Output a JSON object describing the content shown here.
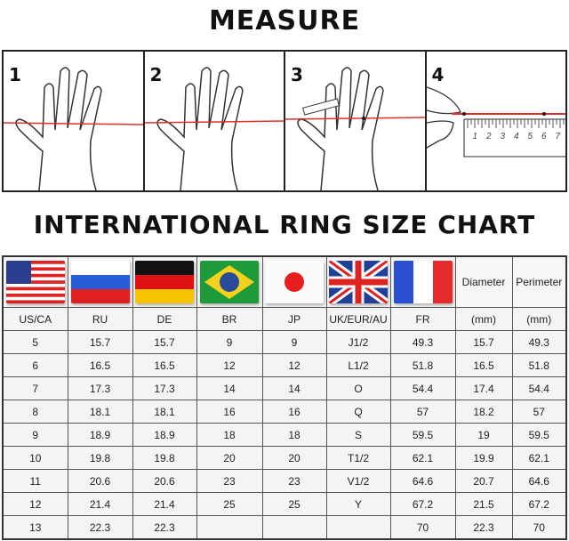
{
  "titles": {
    "measure": "MEASURE",
    "chart": "INTERNATIONAL RING SIZE CHART"
  },
  "steps": [
    {
      "number": "1"
    },
    {
      "number": "2"
    },
    {
      "number": "3"
    },
    {
      "number": "4"
    }
  ],
  "ruler": {
    "labels": [
      "1",
      "2",
      "3",
      "4",
      "5",
      "6",
      "7"
    ]
  },
  "colors": {
    "string": "#e0302a",
    "border": "#333333"
  },
  "table": {
    "flags": [
      "usa-flag",
      "russia-flag",
      "germany-flag",
      "brazil-flag",
      "japan-flag",
      "uk-flag",
      "france-flag"
    ],
    "extra_headers": [
      "Diameter",
      "Perimeter"
    ],
    "headers": [
      "US/CA",
      "RU",
      "DE",
      "BR",
      "JP",
      "UK/EUR/AU",
      "FR",
      "(mm)",
      "(mm)"
    ],
    "rows": [
      [
        "5",
        "15.7",
        "15.7",
        "9",
        "9",
        "J1/2",
        "49.3",
        "15.7",
        "49.3"
      ],
      [
        "6",
        "16.5",
        "16.5",
        "12",
        "12",
        "L1/2",
        "51.8",
        "16.5",
        "51.8"
      ],
      [
        "7",
        "17.3",
        "17.3",
        "14",
        "14",
        "O",
        "54.4",
        "17.4",
        "54.4"
      ],
      [
        "8",
        "18.1",
        "18.1",
        "16",
        "16",
        "Q",
        "57",
        "18.2",
        "57"
      ],
      [
        "9",
        "18.9",
        "18.9",
        "18",
        "18",
        "S",
        "59.5",
        "19",
        "59.5"
      ],
      [
        "10",
        "19.8",
        "19.8",
        "20",
        "20",
        "T1/2",
        "62.1",
        "19.9",
        "62.1"
      ],
      [
        "11",
        "20.6",
        "20.6",
        "23",
        "23",
        "V1/2",
        "64.6",
        "20.7",
        "64.6"
      ],
      [
        "12",
        "21.4",
        "21.4",
        "25",
        "25",
        "Y",
        "67.2",
        "21.5",
        "67.2"
      ],
      [
        "13",
        "22.3",
        "22.3",
        "",
        "",
        "",
        "70",
        "22.3",
        "70"
      ]
    ]
  }
}
